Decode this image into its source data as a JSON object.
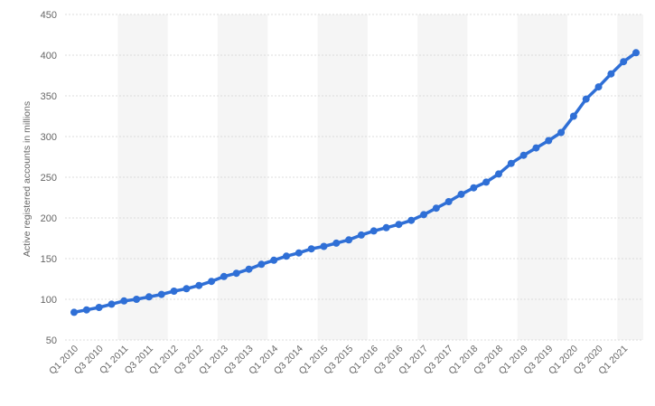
{
  "chart_data": {
    "type": "line",
    "title": "",
    "xlabel": "",
    "ylabel": "Active registered accounts in millions",
    "ylim": [
      50,
      450
    ],
    "yticks": [
      50,
      100,
      150,
      200,
      250,
      300,
      350,
      400,
      450
    ],
    "grid": true,
    "legend": "none",
    "x": [
      "Q1 2010",
      "Q2 2010",
      "Q3 2010",
      "Q4 2010",
      "Q1 2011",
      "Q2 2011",
      "Q3 2011",
      "Q4 2011",
      "Q1 2012",
      "Q2 2012",
      "Q3 2012",
      "Q4 2012",
      "Q1 2013",
      "Q2 2013",
      "Q3 2013",
      "Q4 2013",
      "Q1 2014",
      "Q2 2014",
      "Q3 2014",
      "Q4 2014",
      "Q1 2015",
      "Q2 2015",
      "Q3 2015",
      "Q4 2015",
      "Q1 2016",
      "Q2 2016",
      "Q3 2016",
      "Q4 2016",
      "Q1 2017",
      "Q2 2017",
      "Q3 2017",
      "Q4 2017",
      "Q1 2018",
      "Q2 2018",
      "Q3 2018",
      "Q4 2018",
      "Q1 2019",
      "Q2 2019",
      "Q3 2019",
      "Q4 2019",
      "Q1 2020",
      "Q2 2020",
      "Q3 2020",
      "Q4 2020",
      "Q1 2021",
      "Q2 2021"
    ],
    "xtick_labels": [
      "Q1 2010",
      "Q3 2010",
      "Q1 2011",
      "Q3 2011",
      "Q1 2012",
      "Q3 2012",
      "Q1 2013",
      "Q3 2013",
      "Q1 2014",
      "Q3 2014",
      "Q1 2015",
      "Q3 2015",
      "Q1 2016",
      "Q3 2016",
      "Q1 2017",
      "Q3 2017",
      "Q1 2018",
      "Q3 2018",
      "Q1 2019",
      "Q3 2019",
      "Q1 2020",
      "Q3 2020",
      "Q1 2021"
    ],
    "series": [
      {
        "values": [
          84,
          87,
          90,
          94,
          98,
          100,
          103,
          106,
          110,
          113,
          117,
          122,
          128,
          132,
          137,
          143,
          148,
          153,
          157,
          162,
          165,
          169,
          173,
          179,
          184,
          188,
          192,
          197,
          204,
          212,
          220,
          229,
          237,
          244,
          254,
          267,
          277,
          286,
          295,
          305,
          325,
          346,
          361,
          377,
          392,
          403
        ],
        "color": "#2f6fd6"
      }
    ]
  }
}
